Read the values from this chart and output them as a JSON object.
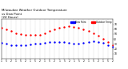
{
  "title": "Milwaukee Weather Outdoor Temperature\nvs Dew Point\n(24 Hours)",
  "title_fontsize": 2.8,
  "background_color": "#ffffff",
  "legend_labels": [
    "Outdoor Temp",
    "Dew Point"
  ],
  "legend_colors": [
    "#ff0000",
    "#0000ff"
  ],
  "xlim": [
    0,
    23
  ],
  "ylim": [
    0,
    80
  ],
  "yticks": [
    10,
    20,
    30,
    40,
    50,
    60,
    70
  ],
  "ytick_labels": [
    "10",
    "20",
    "30",
    "40",
    "50",
    "60",
    "70"
  ],
  "xtick_positions": [
    0,
    1,
    2,
    3,
    4,
    5,
    6,
    7,
    8,
    9,
    10,
    11,
    12,
    13,
    14,
    15,
    16,
    17,
    18,
    19,
    20,
    21,
    22,
    23
  ],
  "xtick_labels": [
    "1",
    "5",
    "2",
    "1",
    "5",
    "2",
    "1",
    "5",
    "2",
    "1",
    "5",
    "2",
    "1",
    "5",
    "2",
    "1",
    "5",
    "2",
    "1",
    "5",
    "2",
    "1",
    "5",
    "2"
  ],
  "grid_color": "#888888",
  "temp_x": [
    0,
    1,
    2,
    3,
    4,
    5,
    6,
    7,
    8,
    9,
    10,
    11,
    12,
    13,
    14,
    15,
    16,
    17,
    18,
    19,
    20,
    21,
    22,
    23
  ],
  "temp_y": [
    63,
    60,
    56,
    52,
    50,
    49,
    48,
    48,
    49,
    52,
    56,
    60,
    63,
    65,
    66,
    65,
    63,
    60,
    56,
    52,
    46,
    40,
    34,
    28
  ],
  "dew_x": [
    0,
    1,
    2,
    3,
    4,
    5,
    6,
    7,
    8,
    9,
    10,
    11,
    12,
    13,
    14,
    15,
    16,
    17,
    18,
    19,
    20,
    21,
    22,
    23
  ],
  "dew_y": [
    32,
    30,
    28,
    28,
    28,
    28,
    29,
    30,
    31,
    32,
    33,
    34,
    34,
    33,
    32,
    31,
    31,
    32,
    34,
    35,
    34,
    32,
    28,
    24
  ],
  "dot_size": 3,
  "tick_fontsize": 2.2,
  "legend_fontsize": 2.0
}
